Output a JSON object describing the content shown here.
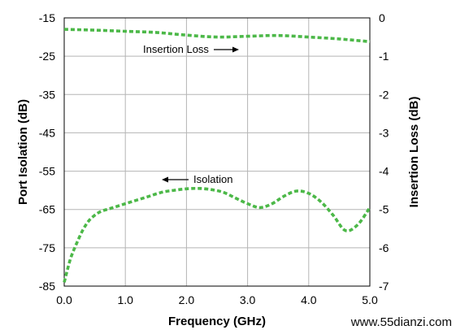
{
  "chart_data": {
    "type": "line",
    "title": "",
    "xlabel": "Frequency (GHz)",
    "ylabel_left": "Port Isolation (dB)",
    "ylabel_right": "Insertion Loss (dB)",
    "xlim": [
      0,
      5
    ],
    "ylim_left": [
      -85,
      -15
    ],
    "ylim_right": [
      -7,
      0
    ],
    "x_ticks": [
      0,
      1,
      2,
      3,
      4,
      5
    ],
    "x_tick_labels": [
      "0.0",
      "1.0",
      "2.0",
      "3.0",
      "4.0",
      "5.0"
    ],
    "y_left_ticks": [
      -15,
      -25,
      -35,
      -45,
      -55,
      -65,
      -75,
      -85
    ],
    "y_left_tick_labels": [
      "-15",
      "-25",
      "-35",
      "-45",
      "-55",
      "-65",
      "-75",
      "-85"
    ],
    "y_right_ticks": [
      0,
      -1,
      -2,
      -3,
      -4,
      -5,
      -6,
      -7
    ],
    "y_right_tick_labels": [
      "0",
      "-1",
      "-2",
      "-3",
      "-4",
      "-5",
      "-6",
      "-7"
    ],
    "grid": true,
    "line_color": "#4cb848",
    "series": [
      {
        "name": "Insertion Loss",
        "axis": "right",
        "x": [
          0,
          0.5,
          1.0,
          1.5,
          2.0,
          2.5,
          3.0,
          3.5,
          4.0,
          4.5,
          5.0
        ],
        "y": [
          -0.3,
          -0.32,
          -0.35,
          -0.38,
          -0.45,
          -0.5,
          -0.48,
          -0.46,
          -0.5,
          -0.55,
          -0.62
        ]
      },
      {
        "name": "Isolation",
        "axis": "left",
        "x": [
          0,
          0.1,
          0.2,
          0.3,
          0.4,
          0.5,
          0.6,
          0.7,
          0.8,
          1.0,
          1.2,
          1.4,
          1.6,
          1.8,
          2.0,
          2.2,
          2.4,
          2.6,
          2.8,
          3.0,
          3.2,
          3.4,
          3.6,
          3.8,
          4.0,
          4.2,
          4.4,
          4.6,
          4.8,
          5.0
        ],
        "y": [
          -84,
          -78,
          -74,
          -70.5,
          -68,
          -66.5,
          -65.5,
          -65,
          -64.5,
          -63.5,
          -62.5,
          -61.5,
          -60.5,
          -60,
          -59.6,
          -59.5,
          -59.8,
          -60.5,
          -62,
          -63.5,
          -64.5,
          -63.5,
          -61.5,
          -60.2,
          -60.8,
          -63,
          -66.5,
          -70.5,
          -69,
          -64.5
        ]
      }
    ],
    "annotations": [
      {
        "text": "Insertion Loss",
        "arrow": "right"
      },
      {
        "text": "Isolation",
        "arrow": "left"
      }
    ]
  },
  "watermark": "www.55dianzi.com"
}
